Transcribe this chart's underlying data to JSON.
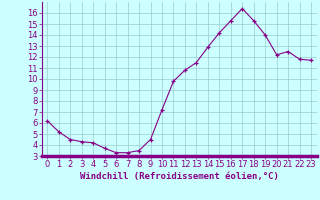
{
  "x": [
    0,
    1,
    2,
    3,
    4,
    5,
    6,
    7,
    8,
    9,
    10,
    11,
    12,
    13,
    14,
    15,
    16,
    17,
    18,
    19,
    20,
    21,
    22,
    23
  ],
  "y": [
    6.2,
    5.2,
    4.5,
    4.3,
    4.2,
    3.7,
    3.3,
    3.3,
    3.5,
    4.5,
    7.2,
    9.8,
    10.8,
    11.5,
    12.9,
    14.2,
    15.3,
    16.4,
    15.3,
    14.0,
    12.2,
    12.5,
    11.8,
    11.7
  ],
  "xlabel": "Windchill (Refroidissement éolien,°C)",
  "xlim": [
    -0.5,
    23.5
  ],
  "ylim": [
    3,
    17
  ],
  "yticks": [
    3,
    4,
    5,
    6,
    7,
    8,
    9,
    10,
    11,
    12,
    13,
    14,
    15,
    16
  ],
  "xticks": [
    0,
    1,
    2,
    3,
    4,
    5,
    6,
    7,
    8,
    9,
    10,
    11,
    12,
    13,
    14,
    15,
    16,
    17,
    18,
    19,
    20,
    21,
    22,
    23
  ],
  "line_color": "#880088",
  "marker": "+",
  "bg_color": "#ccffff",
  "grid_color": "#99cccc",
  "axis_bar_color": "#880088",
  "tick_color": "#880088",
  "label_fontsize": 6.5,
  "tick_fontsize": 6.0
}
